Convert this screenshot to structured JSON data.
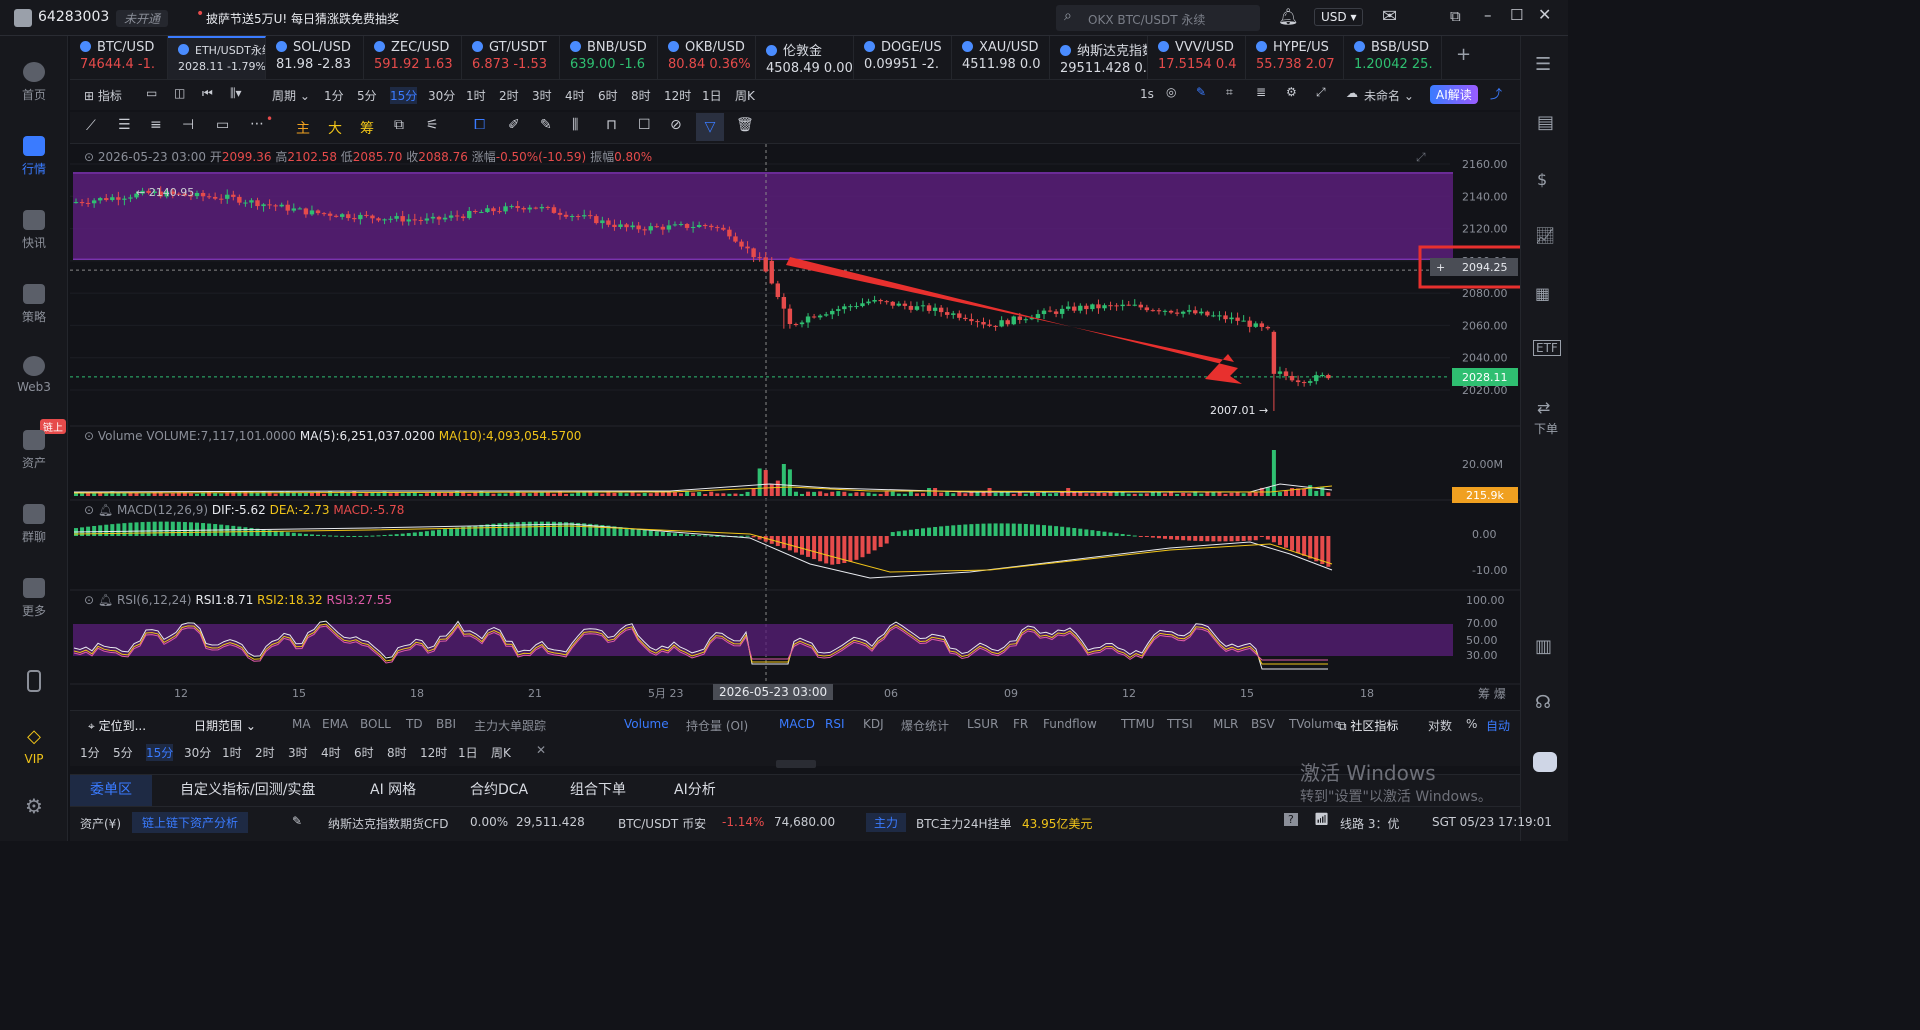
{
  "topbar": {
    "user_id": "64283003",
    "status": "未开通",
    "promo": "披萨节送5万U!  每日猜涨跌免费抽奖",
    "search_placeholder": "OKX BTC/USDT 永续",
    "currency": "USD"
  },
  "sidebar": {
    "items": [
      "首页",
      "行情",
      "快讯",
      "策略",
      "Web3",
      "资产",
      "群聊",
      "更多"
    ],
    "badge": "链上",
    "vip": "VIP"
  },
  "rightbar": {
    "order": "下单"
  },
  "tickers": [
    {
      "name": "BTC/USD",
      "price": "74644.4",
      "chg": "-1.",
      "color": "red"
    },
    {
      "name": "ETH/USDT永续",
      "price": "2028.11",
      "chg": "-1.79%",
      "color": "white"
    },
    {
      "name": "SOL/USD",
      "price": "81.98",
      "chg": "-2.83",
      "color": "white"
    },
    {
      "name": "ZEC/USD",
      "price": "591.92",
      "chg": "1.63",
      "color": "red"
    },
    {
      "name": "GT/USDT",
      "price": "6.873",
      "chg": "-1.53",
      "color": "red"
    },
    {
      "name": "BNB/USD",
      "price": "639.00",
      "chg": "-1.6",
      "color": "green"
    },
    {
      "name": "OKB/USD",
      "price": "80.84",
      "chg": "0.36%",
      "color": "red"
    },
    {
      "name": "伦敦金",
      "price": "4508.49",
      "chg": "0.00%",
      "color": "white"
    },
    {
      "name": "DOGE/US",
      "price": "0.09951",
      "chg": "-2.",
      "color": "white"
    },
    {
      "name": "XAU/USD",
      "price": "4511.98",
      "chg": "0.0",
      "color": "white"
    },
    {
      "name": "纳斯达克指数",
      "price": "29511.428",
      "chg": "0.0",
      "color": "white"
    },
    {
      "name": "VVV/USD",
      "price": "17.5154",
      "chg": "0.4",
      "color": "red"
    },
    {
      "name": "HYPE/US",
      "price": "55.738",
      "chg": "2.07",
      "color": "red"
    },
    {
      "name": "BSB/USD",
      "price": "1.20042",
      "chg": "25.",
      "color": "green"
    }
  ],
  "toolbar": {
    "indicator": "指标",
    "period": "周期",
    "periods": [
      "1分",
      "5分",
      "15分",
      "30分",
      "1时",
      "2时",
      "3时",
      "4时",
      "6时",
      "8时",
      "12时",
      "1日",
      "周K"
    ],
    "interval": "1s",
    "unnamed": "未命名",
    "ai": "AI解读"
  },
  "drawtools": {
    "zhu": "主",
    "da": "大",
    "chou": "筹"
  },
  "ohlc": {
    "time": "2026-05-23 03:00",
    "open_l": "开",
    "open": "2099.36",
    "high_l": "高",
    "high": "2102.58",
    "low_l": "低",
    "low": "2085.70",
    "close_l": "收",
    "close": "2088.76",
    "chg_l": "涨幅",
    "chg": "-0.50%(-10.59)",
    "amp_l": "振幅",
    "amp": "0.80%"
  },
  "price_axis": [
    "2160.00",
    "2140.00",
    "2120.00",
    "2100.00",
    "2080.00",
    "2060.00",
    "2040.00",
    "2020.00"
  ],
  "labels": {
    "high_mark": "← 2140.95",
    "low_mark": "2007.01 →",
    "crosshair_price": "2094.25",
    "last_price": "2028.11",
    "vol_last": "215.9k",
    "vol_axis": "20.00M",
    "macd_axis": [
      "0.00",
      "-10.00"
    ],
    "rsi_axis": [
      "100.00",
      "70.00",
      "50.00",
      "30.00"
    ]
  },
  "volume": {
    "title": "Volume",
    "vol": "VOLUME:7,117,101.0000",
    "ma5": "MA(5):6,251,037.0200",
    "ma10": "MA(10):4,093,054.5700"
  },
  "macd": {
    "title": "MACD(12,26,9)",
    "dif": "DIF:-5.62",
    "dea": "DEA:-2.73",
    "macd": "MACD:-5.78"
  },
  "rsi": {
    "title": "RSI(6,12,24)",
    "r1": "RSI1:8.71",
    "r2": "RSI2:18.32",
    "r3": "RSI3:27.55"
  },
  "time_axis": [
    "12",
    "15",
    "18",
    "21",
    "5月 23",
    "06",
    "09",
    "12",
    "15",
    "18"
  ],
  "crosshair_time": "2026-05-23 03:00",
  "time_axis_right": "筹  爆",
  "indicators": {
    "locate": "定位到...",
    "date_range": "日期范围",
    "list": [
      "MA",
      "EMA",
      "BOLL",
      "TD",
      "BBI",
      "主力大单跟踪"
    ],
    "sub": [
      "Volume",
      "持仓量 (OI)",
      "MACD",
      "RSI",
      "KDJ",
      "爆仓统计",
      "LSUR",
      "FR",
      "Fundflow",
      "TTMU",
      "TTSI",
      "MLR",
      "BSV",
      "TVolume"
    ],
    "community": "社区指标",
    "log": "对数",
    "pct": "%",
    "auto": "自动"
  },
  "tabs": [
    "委单区",
    "自定义指标/回测/实盘",
    "AI 网格",
    "合约DCA",
    "组合下单",
    "AI分析"
  ],
  "status": {
    "assets": "资产(¥)",
    "chain": "链上链下资产分析",
    "nasdaq": "纳斯达克指数期货CFD",
    "nasdaq_chg": "0.00%",
    "nasdaq_val": "29,511.428",
    "btc": "BTC/USDT 币安",
    "btc_chg": "-1.14%",
    "btc_val": "74,680.00",
    "main": "主力",
    "main_text": "BTC主力24H挂单",
    "main_val": "43.95亿美元",
    "line": "线路 3：优",
    "time": "SGT 05/23 17:19:01"
  },
  "watermark": {
    "l1": "激活 Windows",
    "l2": "转到\"设置\"以激活 Windows。"
  },
  "colors": {
    "up": "#2fbf71",
    "down": "#e64b4b",
    "accent": "#3a7bff",
    "zone": "#5a1f7a"
  }
}
